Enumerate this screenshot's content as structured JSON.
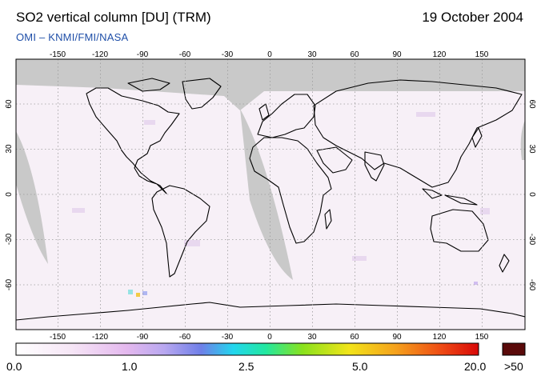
{
  "header": {
    "title": "SO2 vertical column [DU] (TRM)",
    "date": "19 October 2004",
    "credit": "OMI  –  KNMI/FMI/NASA"
  },
  "map": {
    "lon_ticks": [
      "-150",
      "-120",
      "-90",
      "-60",
      "-30",
      "0",
      "30",
      "60",
      "90",
      "120",
      "150"
    ],
    "lat_ticks": [
      "60",
      "30",
      "0",
      "-30",
      "-60"
    ],
    "no_data_color": "#c9c9c9",
    "background_color": "#f7f0f7"
  },
  "colorbar": {
    "labels": [
      "0.0",
      "1.0",
      "2.5",
      "5.0",
      "20.0"
    ],
    "over_label": ">50",
    "over_color": "#5a0a0a"
  }
}
